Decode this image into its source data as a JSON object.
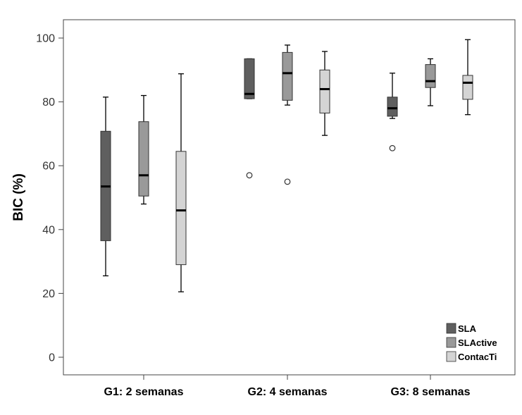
{
  "chart_data": {
    "type": "boxplot",
    "title": "",
    "xlabel": "",
    "ylabel": "BIC (%)",
    "ylim": [
      -5,
      106
    ],
    "yticks": [
      0,
      20,
      40,
      60,
      80,
      100
    ],
    "grid": false,
    "legend_position": "bottom-right",
    "categories": [
      "G1: 2 semanas",
      "G2: 4 semanas",
      "G3: 8 semanas"
    ],
    "series": [
      {
        "name": "SLA",
        "color": "#5f5f5f",
        "boxes": [
          {
            "min": 25.5,
            "q1": 36.5,
            "median": 53.5,
            "q3": 70.8,
            "max": 81.5,
            "outliers": []
          },
          {
            "min": 81.0,
            "q1": 81.0,
            "median": 82.5,
            "q3": 93.5,
            "max": 93.5,
            "outliers": [
              57.0
            ]
          },
          {
            "min": 74.8,
            "q1": 75.5,
            "median": 78.0,
            "q3": 81.5,
            "max": 89.0,
            "outliers": [
              65.5
            ]
          }
        ]
      },
      {
        "name": "SLActive",
        "color": "#999999",
        "boxes": [
          {
            "min": 48.0,
            "q1": 50.5,
            "median": 57.0,
            "q3": 73.8,
            "max": 82.0,
            "outliers": []
          },
          {
            "min": 79.0,
            "q1": 80.5,
            "median": 89.0,
            "q3": 95.5,
            "max": 97.8,
            "outliers": [
              55.0
            ]
          },
          {
            "min": 78.8,
            "q1": 84.5,
            "median": 86.5,
            "q3": 91.7,
            "max": 93.5,
            "outliers": []
          }
        ]
      },
      {
        "name": "ContacTi",
        "color": "#d4d4d4",
        "boxes": [
          {
            "min": 20.5,
            "q1": 29.0,
            "median": 46.0,
            "q3": 64.5,
            "max": 88.8,
            "outliers": []
          },
          {
            "min": 69.5,
            "q1": 76.5,
            "median": 84.0,
            "q3": 90.0,
            "max": 95.8,
            "outliers": []
          },
          {
            "min": 76.0,
            "q1": 80.8,
            "median": 86.0,
            "q3": 88.3,
            "max": 99.5,
            "outliers": []
          }
        ]
      }
    ]
  }
}
